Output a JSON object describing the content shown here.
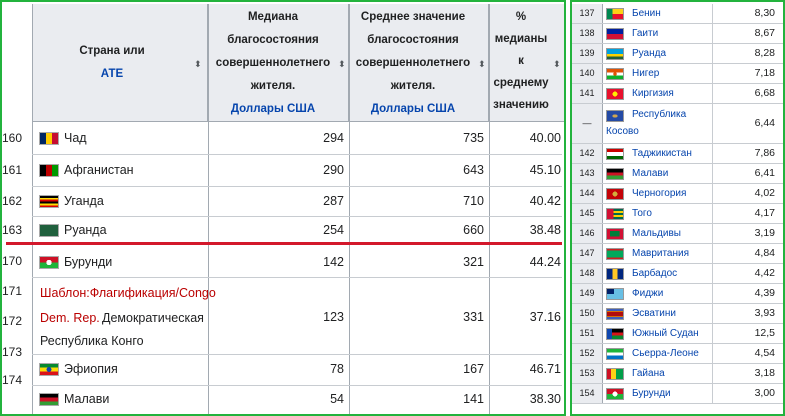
{
  "left": {
    "headers": {
      "country": "Страна или",
      "country_link": "АТЕ",
      "median_1": "Медиана",
      "median_2": "благосостояния",
      "median_3": "совершеннолетнего",
      "median_4": "жителя.",
      "median_unit": "Доллары США",
      "mean_1": "Среднее значение",
      "mean_2": "благосостояния",
      "mean_3": "совершеннолетнего",
      "mean_4": "жителя.",
      "mean_unit": "Доллары США",
      "pct_1": "%",
      "pct_2": "медианы",
      "pct_3": "к",
      "pct_4": "среднему",
      "pct_5": "значению"
    },
    "rows": [
      {
        "rank": "160",
        "country": "Чад",
        "median": "294",
        "mean": "735",
        "pct": "40.00"
      },
      {
        "rank": "161",
        "country": "Афганистан",
        "median": "290",
        "mean": "643",
        "pct": "45.10"
      },
      {
        "rank": "162",
        "country": "Уганда",
        "median": "287",
        "mean": "710",
        "pct": "40.42"
      },
      {
        "rank": "163",
        "country": "Руанда",
        "median": "254",
        "mean": "660",
        "pct": "38.48"
      },
      {
        "rank": "170",
        "country": "Бурунди",
        "median": "142",
        "mean": "321",
        "pct": "44.24"
      },
      {
        "rank_a": "171",
        "rank_b": "172",
        "rank_c": "173",
        "tpl_1": "Шаблон:Флагификация/Congo",
        "tpl_2": "Dem. Rep.",
        "country_2": "Демократическая",
        "country_3": "Республика Конго",
        "median": "123",
        "mean": "331",
        "pct": "37.16"
      },
      {
        "rank": "174",
        "country": "Эфиопия",
        "median": "78",
        "mean": "167",
        "pct": "46.71"
      },
      {
        "rank": "",
        "country": "Малави",
        "median": "54",
        "mean": "141",
        "pct": "38.30"
      }
    ]
  },
  "right": {
    "rows": [
      {
        "rank": "137",
        "name": "Бенин",
        "value": "8,30"
      },
      {
        "rank": "138",
        "name": "Гаити",
        "value": "8,67"
      },
      {
        "rank": "139",
        "name": "Руанда",
        "value": "8,28"
      },
      {
        "rank": "140",
        "name": "Нигер",
        "value": "7,18"
      },
      {
        "rank": "141",
        "name": "Киргизия",
        "value": "6,68"
      },
      {
        "rank": "—",
        "name": "Республика",
        "name2": "Косово",
        "value": "6,44"
      },
      {
        "rank": "142",
        "name": "Таджикистан",
        "value": "7,86"
      },
      {
        "rank": "143",
        "name": "Малави",
        "value": "6,41"
      },
      {
        "rank": "144",
        "name": "Черногория",
        "value": "4,02"
      },
      {
        "rank": "145",
        "name": "Того",
        "value": "4,17"
      },
      {
        "rank": "146",
        "name": "Мальдивы",
        "value": "3,19"
      },
      {
        "rank": "147",
        "name": "Мавритания",
        "value": "4,84"
      },
      {
        "rank": "148",
        "name": "Барбадос",
        "value": "4,42"
      },
      {
        "rank": "149",
        "name": "Фиджи",
        "value": "4,39"
      },
      {
        "rank": "150",
        "name": "Эсватини",
        "value": "3,93"
      },
      {
        "rank": "151",
        "name": "Южный Судан",
        "value": "12,5"
      },
      {
        "rank": "152",
        "name": "Сьерра-Леоне",
        "value": "4,54"
      },
      {
        "rank": "153",
        "name": "Гайана",
        "value": "3,18"
      },
      {
        "rank": "154",
        "name": "Бурунди",
        "value": "3,00"
      }
    ]
  },
  "colors": {
    "frame": "#23b33d",
    "divider": "#d3182b",
    "link": "#0645ad",
    "header_bg": "#eaecf0"
  }
}
